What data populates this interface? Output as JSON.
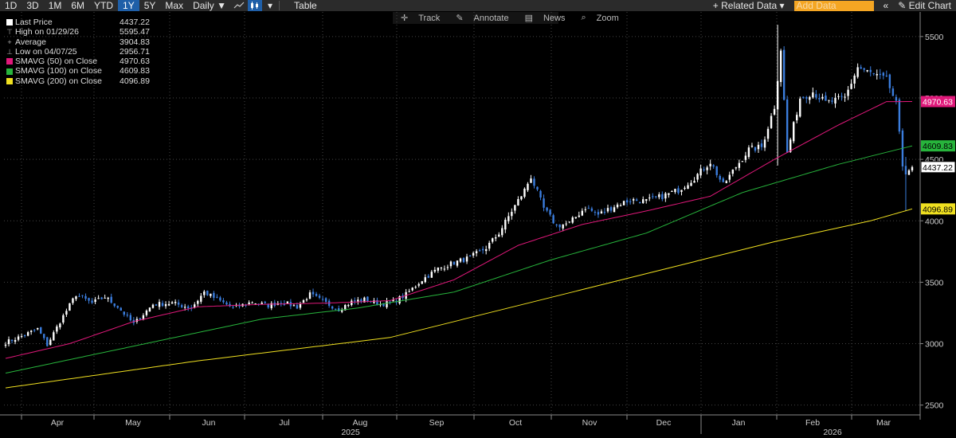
{
  "toolbar": {
    "ranges": [
      "1D",
      "3D",
      "1M",
      "6M",
      "YTD",
      "1Y",
      "5Y",
      "Max"
    ],
    "active_range": "1Y",
    "interval": "Daily",
    "table_label": "Table",
    "related_data": "+ Related Data",
    "add_data_placeholder": "Add Data",
    "edit_chart": "Edit Chart"
  },
  "subbar": {
    "track": "Track",
    "annotate": "Annotate",
    "news": "News",
    "zoom": "Zoom"
  },
  "legend": {
    "last_price": {
      "label": "Last Price",
      "value": "4437.22",
      "color": "#ffffff"
    },
    "high": {
      "label": "High on 01/29/26",
      "value": "5595.47"
    },
    "average": {
      "label": "Average",
      "value": "3904.83"
    },
    "low": {
      "label": "Low on 04/07/25",
      "value": "2956.71"
    },
    "sma50": {
      "label": "SMAVG (50)  on Close",
      "value": "4970.63",
      "color": "#e0187a"
    },
    "sma100": {
      "label": "SMAVG (100)  on Close",
      "value": "4609.83",
      "color": "#27b43c"
    },
    "sma200": {
      "label": "SMAVG (200)  on Close",
      "value": "4096.89",
      "color": "#f0e020"
    }
  },
  "chart_data": {
    "type": "candlestick",
    "title": "",
    "ylim": [
      2420,
      5700
    ],
    "y_ticks": [
      2500,
      3000,
      3500,
      4000,
      4500,
      5000,
      5500
    ],
    "x_months": [
      "Apr",
      "May",
      "Jun",
      "Jul",
      "Aug",
      "Sep",
      "Oct",
      "Nov",
      "Dec",
      "Jan",
      "Feb",
      "Mar"
    ],
    "x_years": [
      "2025",
      "2026"
    ],
    "price_anchors": [
      [
        0,
        3010
      ],
      [
        5,
        3060
      ],
      [
        10,
        3120
      ],
      [
        13,
        2990
      ],
      [
        17,
        3180
      ],
      [
        22,
        3400
      ],
      [
        27,
        3330
      ],
      [
        31,
        3380
      ],
      [
        35,
        3300
      ],
      [
        40,
        3160
      ],
      [
        46,
        3320
      ],
      [
        52,
        3330
      ],
      [
        58,
        3290
      ],
      [
        62,
        3420
      ],
      [
        66,
        3360
      ],
      [
        71,
        3290
      ],
      [
        77,
        3340
      ],
      [
        82,
        3310
      ],
      [
        86,
        3340
      ],
      [
        91,
        3300
      ],
      [
        95,
        3400
      ],
      [
        100,
        3330
      ],
      [
        104,
        3280
      ],
      [
        108,
        3340
      ],
      [
        112,
        3360
      ],
      [
        117,
        3320
      ],
      [
        121,
        3340
      ],
      [
        125,
        3400
      ],
      [
        130,
        3520
      ],
      [
        135,
        3610
      ],
      [
        140,
        3660
      ],
      [
        145,
        3700
      ],
      [
        150,
        3780
      ],
      [
        154,
        3900
      ],
      [
        158,
        4080
      ],
      [
        162,
        4250
      ],
      [
        164,
        4360
      ],
      [
        168,
        4100
      ],
      [
        172,
        3960
      ],
      [
        176,
        3980
      ],
      [
        181,
        4110
      ],
      [
        185,
        4050
      ],
      [
        190,
        4120
      ],
      [
        195,
        4170
      ],
      [
        200,
        4160
      ],
      [
        205,
        4200
      ],
      [
        210,
        4250
      ],
      [
        215,
        4350
      ],
      [
        220,
        4480
      ],
      [
        224,
        4290
      ],
      [
        228,
        4440
      ],
      [
        232,
        4580
      ],
      [
        236,
        4600
      ],
      [
        240,
        4930
      ],
      [
        242,
        5400
      ],
      [
        244,
        4550
      ],
      [
        248,
        5000
      ],
      [
        252,
        5050
      ],
      [
        256,
        4960
      ],
      [
        262,
        5000
      ],
      [
        266,
        5250
      ],
      [
        270,
        5200
      ],
      [
        275,
        5150
      ],
      [
        278,
        4950
      ],
      [
        280,
        4450
      ],
      [
        281,
        4400
      ],
      [
        283,
        4437.22
      ]
    ],
    "anomalies": [
      [
        241,
        5595.47,
        4450
      ],
      [
        281,
        4520,
        4080
      ]
    ],
    "sma50_anchors": [
      [
        0,
        2880
      ],
      [
        20,
        3000
      ],
      [
        40,
        3180
      ],
      [
        60,
        3300
      ],
      [
        80,
        3320
      ],
      [
        100,
        3330
      ],
      [
        120,
        3350
      ],
      [
        140,
        3520
      ],
      [
        160,
        3800
      ],
      [
        180,
        3970
      ],
      [
        200,
        4080
      ],
      [
        220,
        4200
      ],
      [
        240,
        4500
      ],
      [
        260,
        4780
      ],
      [
        275,
        4970
      ],
      [
        283,
        4970.63
      ]
    ],
    "sma100_anchors": [
      [
        0,
        2760
      ],
      [
        40,
        2980
      ],
      [
        80,
        3200
      ],
      [
        110,
        3290
      ],
      [
        140,
        3420
      ],
      [
        170,
        3680
      ],
      [
        200,
        3900
      ],
      [
        230,
        4230
      ],
      [
        260,
        4460
      ],
      [
        283,
        4609.83
      ]
    ],
    "sma200_anchors": [
      [
        0,
        2640
      ],
      [
        60,
        2860
      ],
      [
        120,
        3050
      ],
      [
        160,
        3310
      ],
      [
        200,
        3570
      ],
      [
        240,
        3830
      ],
      [
        270,
        4000
      ],
      [
        283,
        4096.89
      ]
    ],
    "last_price_label": "4437.22",
    "sma50_label": "4970.63",
    "sma100_label": "4609.83",
    "sma200_label": "4096.89",
    "colors": {
      "up": "#ffffff",
      "down": "#3b7ddd",
      "sma50": "#e0187a",
      "sma100": "#27b43c",
      "sma200": "#f0e020",
      "grid": "#444"
    }
  }
}
